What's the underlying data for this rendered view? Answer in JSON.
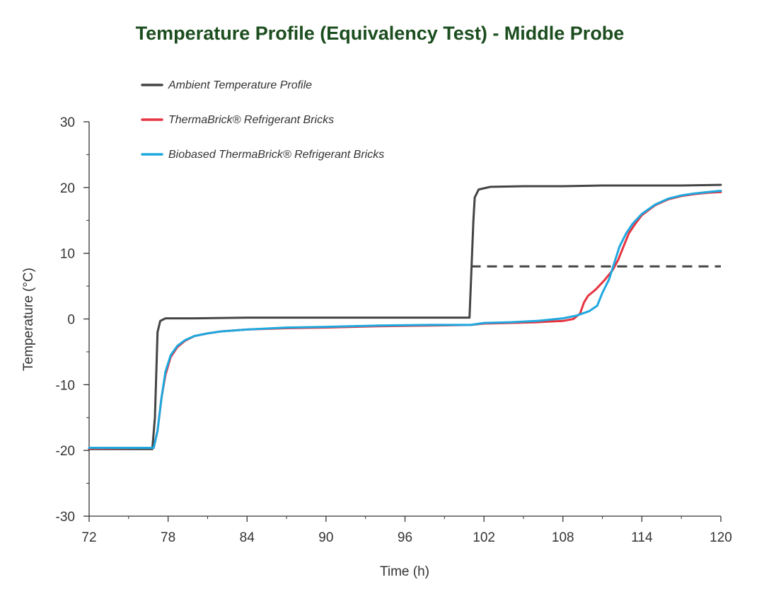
{
  "chart_data": {
    "type": "line",
    "title": "Temperature Profile (Equivalency Test) - Middle Probe",
    "xlabel": "Time (h)",
    "ylabel": "Temperature (°C)",
    "xlim": [
      72,
      120
    ],
    "ylim": [
      -30,
      30
    ],
    "x_ticks": [
      72,
      78,
      84,
      90,
      96,
      102,
      108,
      114,
      120
    ],
    "y_ticks": [
      -30,
      -20,
      -10,
      0,
      10,
      20,
      30
    ],
    "x_tick_labels": [
      "72",
      "78",
      "84",
      "90",
      "96",
      "102",
      "108",
      "114",
      "120"
    ],
    "y_tick_labels": [
      "-30",
      "-20",
      "-10",
      "0",
      "10",
      "20",
      "30"
    ],
    "grid": false,
    "legend_position": "top-left",
    "series": [
      {
        "name": "Ambient Temperature Profile",
        "color": "#444444",
        "points": [
          [
            72,
            -19.8
          ],
          [
            76.8,
            -19.8
          ],
          [
            77.0,
            -15
          ],
          [
            77.2,
            -2
          ],
          [
            77.4,
            -0.3
          ],
          [
            77.8,
            0.1
          ],
          [
            80,
            0.1
          ],
          [
            84,
            0.2
          ],
          [
            90,
            0.2
          ],
          [
            96,
            0.2
          ],
          [
            100.9,
            0.2
          ],
          [
            101.0,
            5
          ],
          [
            101.2,
            15
          ],
          [
            101.3,
            18.5
          ],
          [
            101.6,
            19.7
          ],
          [
            102.5,
            20.1
          ],
          [
            105,
            20.2
          ],
          [
            108,
            20.2
          ],
          [
            111,
            20.3
          ],
          [
            114,
            20.3
          ],
          [
            117,
            20.3
          ],
          [
            120,
            20.4
          ]
        ]
      },
      {
        "name": "ThermaBrick® Refrigerant Bricks",
        "color": "#e63440",
        "points": [
          [
            72,
            -19.7
          ],
          [
            76,
            -19.6
          ],
          [
            76.9,
            -19.6
          ],
          [
            77.2,
            -17
          ],
          [
            77.5,
            -12
          ],
          [
            77.8,
            -8.5
          ],
          [
            78.2,
            -5.8
          ],
          [
            78.7,
            -4.3
          ],
          [
            79.3,
            -3.3
          ],
          [
            80,
            -2.6
          ],
          [
            81,
            -2.2
          ],
          [
            82,
            -1.9
          ],
          [
            84,
            -1.6
          ],
          [
            87,
            -1.4
          ],
          [
            90,
            -1.3
          ],
          [
            94,
            -1.1
          ],
          [
            98,
            -1.0
          ],
          [
            101,
            -0.9
          ],
          [
            102,
            -0.7
          ],
          [
            104,
            -0.6
          ],
          [
            106,
            -0.5
          ],
          [
            108,
            -0.3
          ],
          [
            108.8,
            0.0
          ],
          [
            109.3,
            0.8
          ],
          [
            109.6,
            2.5
          ],
          [
            109.9,
            3.5
          ],
          [
            110.5,
            4.5
          ],
          [
            111.2,
            6.0
          ],
          [
            111.8,
            7.5
          ],
          [
            112.2,
            9.0
          ],
          [
            112.6,
            11.0
          ],
          [
            113,
            13.0
          ],
          [
            113.5,
            14.5
          ],
          [
            114,
            15.8
          ],
          [
            115,
            17.3
          ],
          [
            116,
            18.2
          ],
          [
            117,
            18.7
          ],
          [
            118,
            19.0
          ],
          [
            119,
            19.2
          ],
          [
            120,
            19.3
          ]
        ]
      },
      {
        "name": "Biobased ThermaBrick® Refrigerant Bricks",
        "color": "#1ea8de",
        "points": [
          [
            72,
            -19.6
          ],
          [
            76.9,
            -19.6
          ],
          [
            77.2,
            -17
          ],
          [
            77.5,
            -12
          ],
          [
            77.8,
            -8
          ],
          [
            78.2,
            -5.5
          ],
          [
            78.7,
            -4.1
          ],
          [
            79.3,
            -3.2
          ],
          [
            80,
            -2.6
          ],
          [
            81,
            -2.2
          ],
          [
            82,
            -1.9
          ],
          [
            84,
            -1.6
          ],
          [
            87,
            -1.3
          ],
          [
            90,
            -1.2
          ],
          [
            94,
            -1.0
          ],
          [
            98,
            -0.9
          ],
          [
            101,
            -0.9
          ],
          [
            102,
            -0.6
          ],
          [
            104,
            -0.5
          ],
          [
            106,
            -0.3
          ],
          [
            108,
            0.1
          ],
          [
            109,
            0.5
          ],
          [
            110,
            1.2
          ],
          [
            110.6,
            2.0
          ],
          [
            111,
            4.0
          ],
          [
            111.5,
            6.0
          ],
          [
            111.9,
            8.5
          ],
          [
            112.3,
            11.0
          ],
          [
            112.8,
            13.0
          ],
          [
            113.3,
            14.5
          ],
          [
            114,
            16.0
          ],
          [
            115,
            17.4
          ],
          [
            116,
            18.3
          ],
          [
            117,
            18.8
          ],
          [
            118,
            19.1
          ],
          [
            119,
            19.3
          ],
          [
            120,
            19.5
          ]
        ]
      },
      {
        "name": "",
        "style": "dashed",
        "color": "#444444",
        "points": [
          [
            101,
            8
          ],
          [
            120,
            8
          ]
        ]
      }
    ]
  },
  "colors": {
    "title": "#1b4d1e",
    "axis": "#333333"
  }
}
